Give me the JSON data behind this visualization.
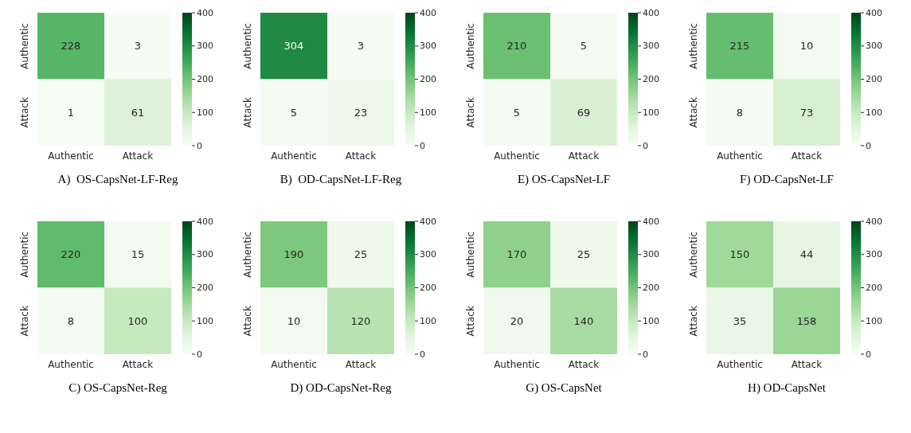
{
  "chart_data": [
    {
      "type": "heatmap",
      "title": "A)  OS-CapsNet-LF-Reg",
      "categories": [
        "Authentic",
        "Attack"
      ],
      "y_categories": [
        "Authentic",
        "Attack"
      ],
      "cells": [
        [
          228,
          3
        ],
        [
          1,
          61
        ]
      ],
      "clim": [
        0,
        400
      ],
      "cticks": [
        0,
        100,
        200,
        300,
        400
      ],
      "data_labels": true
    },
    {
      "type": "heatmap",
      "title": "B)  OD-CapsNet-LF-Reg",
      "categories": [
        "Authentic",
        "Attack"
      ],
      "y_categories": [
        "Authentic",
        "Attack"
      ],
      "cells": [
        [
          304,
          3
        ],
        [
          5,
          23
        ]
      ],
      "clim": [
        0,
        400
      ],
      "cticks": [
        0,
        100,
        200,
        300,
        400
      ],
      "data_labels": true
    },
    {
      "type": "heatmap",
      "title": "E) OS-CapsNet-LF",
      "categories": [
        "Authentic",
        "Attack"
      ],
      "y_categories": [
        "Authentic",
        "Attack"
      ],
      "cells": [
        [
          210,
          5
        ],
        [
          5,
          69
        ]
      ],
      "clim": [
        0,
        400
      ],
      "cticks": [
        0,
        100,
        200,
        300,
        400
      ],
      "data_labels": true
    },
    {
      "type": "heatmap",
      "title": "F) OD-CapsNet-LF",
      "categories": [
        "Authentic",
        "Attack"
      ],
      "y_categories": [
        "Authentic",
        "Attack"
      ],
      "cells": [
        [
          215,
          10
        ],
        [
          8,
          73
        ]
      ],
      "clim": [
        0,
        400
      ],
      "cticks": [
        0,
        100,
        200,
        300,
        400
      ],
      "data_labels": true
    },
    {
      "type": "heatmap",
      "title": "C) OS-CapsNet-Reg",
      "categories": [
        "Authentic",
        "Attack"
      ],
      "y_categories": [
        "Authentic",
        "Attack"
      ],
      "cells": [
        [
          220,
          15
        ],
        [
          8,
          100
        ]
      ],
      "clim": [
        0,
        400
      ],
      "cticks": [
        0,
        100,
        200,
        300,
        400
      ],
      "data_labels": true
    },
    {
      "type": "heatmap",
      "title": "D) OD-CapsNet-Reg",
      "categories": [
        "Authentic",
        "Attack"
      ],
      "y_categories": [
        "Authentic",
        "Attack"
      ],
      "cells": [
        [
          190,
          25
        ],
        [
          10,
          120
        ]
      ],
      "clim": [
        0,
        400
      ],
      "cticks": [
        0,
        100,
        200,
        300,
        400
      ],
      "data_labels": true
    },
    {
      "type": "heatmap",
      "title": "G) OS-CapsNet",
      "categories": [
        "Authentic",
        "Attack"
      ],
      "y_categories": [
        "Authentic",
        "Attack"
      ],
      "cells": [
        [
          170,
          25
        ],
        [
          20,
          140
        ]
      ],
      "clim": [
        0,
        400
      ],
      "cticks": [
        0,
        100,
        200,
        300,
        400
      ],
      "data_labels": true
    },
    {
      "type": "heatmap",
      "title": "H) OD-CapsNet",
      "categories": [
        "Authentic",
        "Attack"
      ],
      "y_categories": [
        "Authentic",
        "Attack"
      ],
      "cells": [
        [
          150,
          44
        ],
        [
          35,
          158
        ]
      ],
      "clim": [
        0,
        400
      ],
      "cticks": [
        0,
        100,
        200,
        300,
        400
      ],
      "data_labels": true
    }
  ]
}
